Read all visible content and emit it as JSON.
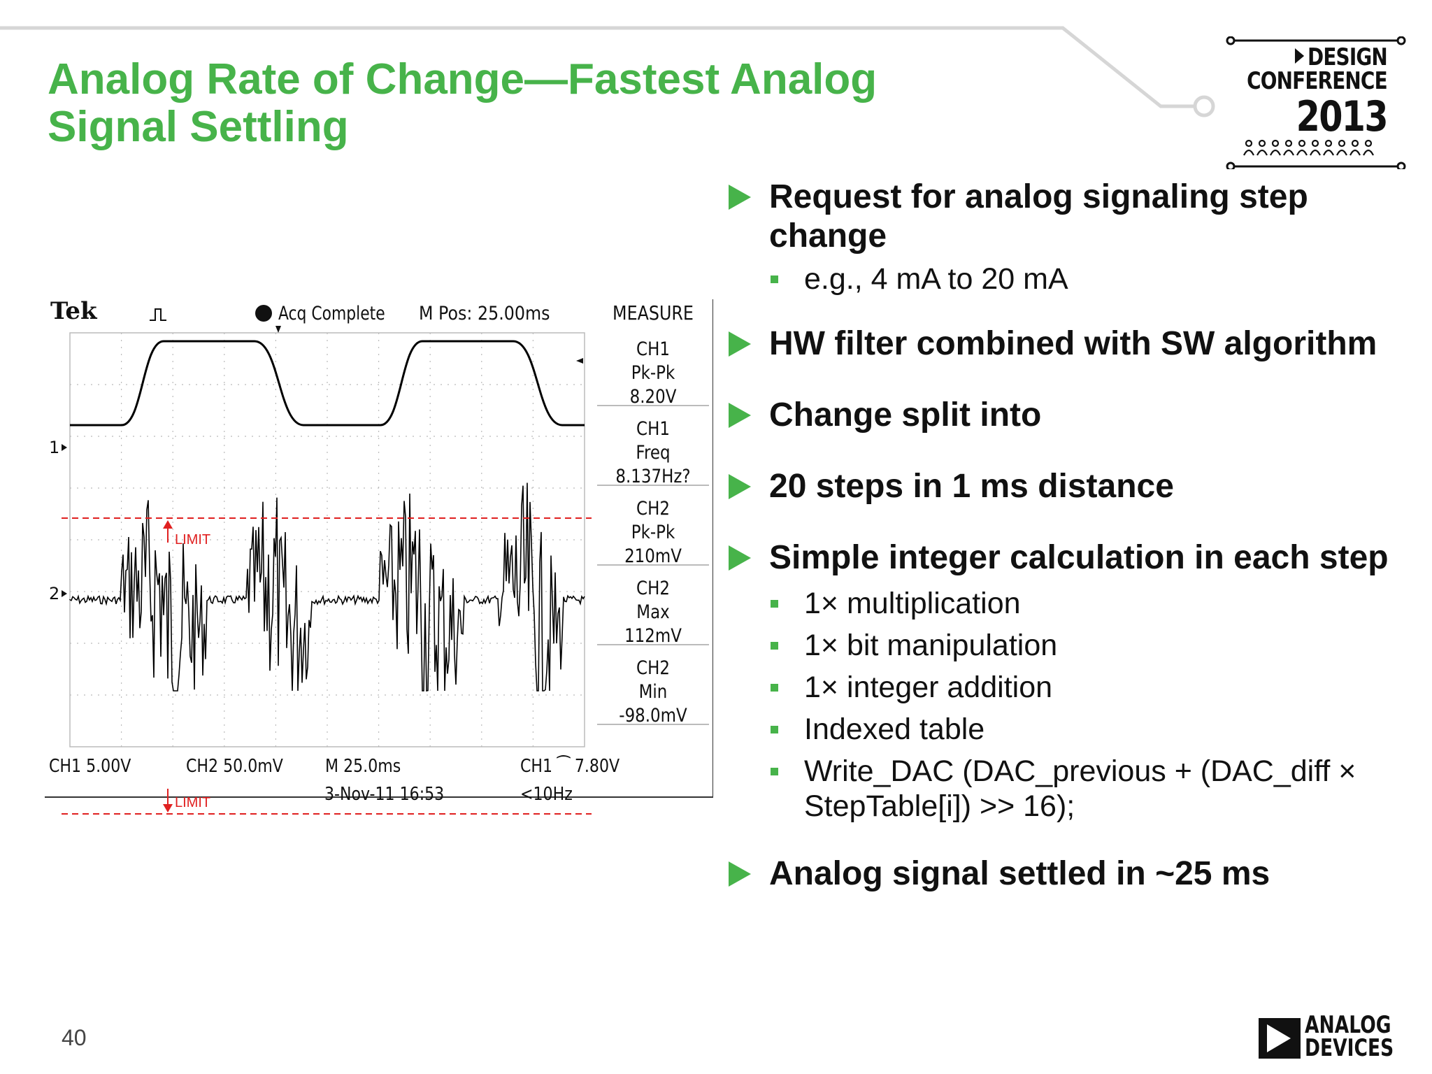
{
  "slide": {
    "title_lines": [
      "Analog Rate of Change—Fastest Analog",
      "Signal Settling"
    ],
    "page_number": "40"
  },
  "conference_logo": {
    "line1": "DESIGN",
    "line2": "CONFERENCE",
    "year": "2013"
  },
  "company_logo": {
    "line1": "ANALOG",
    "line2": "DEVICES"
  },
  "oscilloscope": {
    "brand": "Tek",
    "status": "Acq Complete",
    "mpos": "M Pos: 25.00ms",
    "measure_title": "MEASURE",
    "measurements": [
      {
        "channel": "CH1",
        "label": "Pk-Pk",
        "value": "8.20V"
      },
      {
        "channel": "CH1",
        "label": "Freq",
        "value": "8.137Hz?"
      },
      {
        "channel": "CH2",
        "label": "Pk-Pk",
        "value": "210mV"
      },
      {
        "channel": "CH2",
        "label": "Max",
        "value": "112mV"
      },
      {
        "channel": "CH2",
        "label": "Min",
        "value": "-98.0mV"
      }
    ],
    "ch1_scale": "CH1  5.00V",
    "ch2_scale": "CH2  50.0mV",
    "time_scale": "M 25.0ms",
    "trigger": "CH1 ⁀ 7.80V",
    "date": "3-Nov-11 16:53",
    "freq_note": "<10Hz",
    "ch1_marker": "1",
    "ch2_marker": "2",
    "limit_label_upper": "LIMIT",
    "limit_label_lower": "LIMIT"
  },
  "bullets": [
    {
      "text": "Request for analog signaling step change",
      "sub": [
        "e.g., 4 mA to 20 mA"
      ]
    },
    {
      "text": "HW filter combined with SW algorithm",
      "sub": []
    },
    {
      "text": "Change split into",
      "sub": []
    },
    {
      "text": "20 steps in 1 ms distance",
      "sub": []
    },
    {
      "text": "Simple integer calculation in each step",
      "sub": [
        "1× multiplication",
        "1× bit manipulation",
        "1× integer addition",
        "Indexed table",
        "Write_DAC (DAC_previous + (DAC_diff × StepTable[i]) >> 16);"
      ]
    },
    {
      "text": "Analog signal settled in ~25 ms",
      "sub": []
    }
  ],
  "colors": {
    "accent": "#47b34a",
    "limit": "#e02020",
    "trace": "#000000"
  }
}
